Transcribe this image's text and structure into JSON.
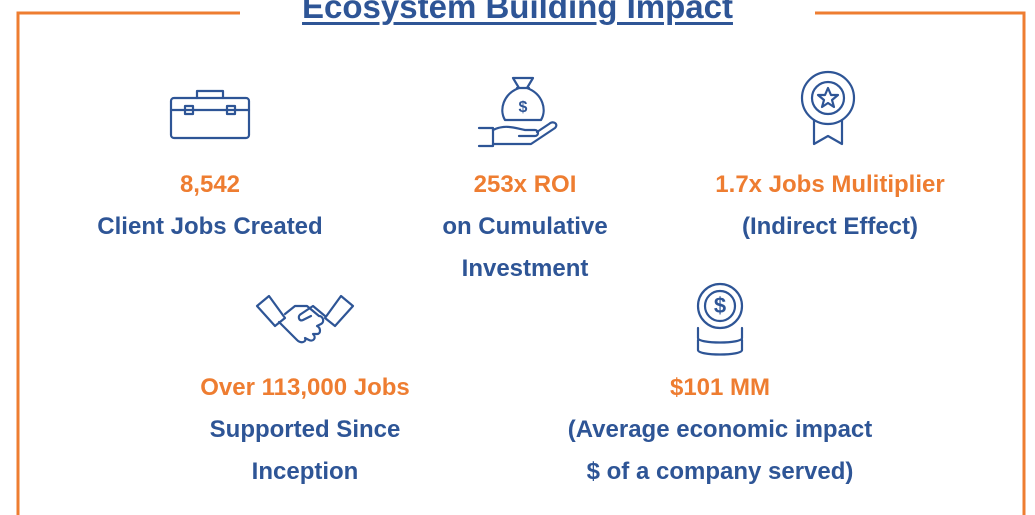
{
  "title": "Ecosystem Building Impact",
  "items": [
    {
      "highlight": [
        "8,542"
      ],
      "description": [
        "Client Jobs Created"
      ]
    },
    {
      "highlight": [
        "253x ROI"
      ],
      "description": [
        "on Cumulative",
        "Investment"
      ]
    },
    {
      "highlight": [
        "1.7x Jobs Mulitiplier"
      ],
      "description": [
        "(Indirect Effect)"
      ]
    },
    {
      "highlight": [
        "Over 113,000 Jobs"
      ],
      "description": [
        "Supported Since",
        "Inception"
      ]
    },
    {
      "highlight": [
        "$101 MM"
      ],
      "description": [
        "(Average economic impact",
        "$ of a company served)"
      ]
    }
  ]
}
